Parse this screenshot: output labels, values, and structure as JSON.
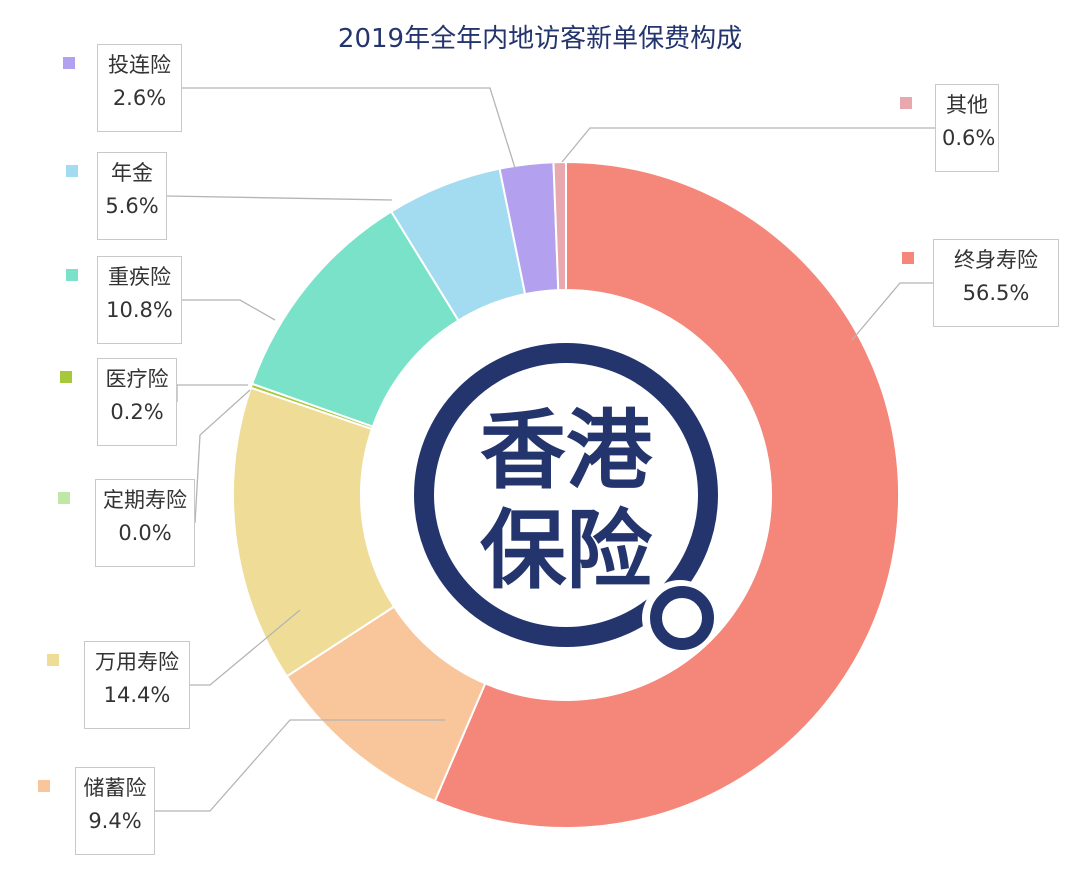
{
  "chart_data": {
    "type": "pie",
    "title": "2019年全年内地访客新单保费构成",
    "series": [
      {
        "name": "终身寿险",
        "value": 56.5,
        "label": "56.5%",
        "color": "#f5867a"
      },
      {
        "name": "储蓄险",
        "value": 9.4,
        "label": "9.4%",
        "color": "#f9c59b"
      },
      {
        "name": "万用寿险",
        "value": 14.4,
        "label": "14.4%",
        "color": "#efdc96"
      },
      {
        "name": "定期寿险",
        "value": 0.0,
        "label": "0.0%",
        "color": "#bfe8a6"
      },
      {
        "name": "医疗险",
        "value": 0.2,
        "label": "0.2%",
        "color": "#a7c83a"
      },
      {
        "name": "重疾险",
        "value": 10.8,
        "label": "10.8%",
        "color": "#79e2c9"
      },
      {
        "name": "年金",
        "value": 5.6,
        "label": "5.6%",
        "color": "#a3dbf0"
      },
      {
        "name": "投连险",
        "value": 2.6,
        "label": "2.6%",
        "color": "#b3a0ef"
      },
      {
        "name": "其他",
        "value": 0.6,
        "label": "0.6%",
        "color": "#e8a8ae"
      }
    ],
    "legend_placement": "callouts around donut"
  },
  "logo": {
    "text": "香港保险",
    "color": "#24356e"
  }
}
